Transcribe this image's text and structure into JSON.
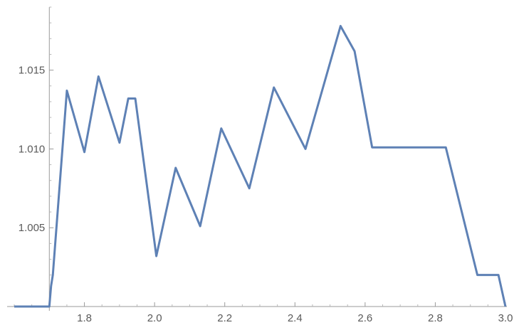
{
  "chart_data": {
    "type": "line",
    "title": "",
    "xlabel": "",
    "ylabel": "",
    "xlim": [
      1.6,
      3.0
    ],
    "ylim": [
      1.0,
      1.019
    ],
    "x_axis_crossing_y": 1.0,
    "y_axis_crossing_x": 1.7,
    "grid": false,
    "legend": "none",
    "line_color": "#5e81b5",
    "x_ticks": [
      {
        "value": 1.8,
        "label": "1.8"
      },
      {
        "value": 2.0,
        "label": "2.0"
      },
      {
        "value": 2.2,
        "label": "2.2"
      },
      {
        "value": 2.4,
        "label": "2.4"
      },
      {
        "value": 2.6,
        "label": "2.6"
      },
      {
        "value": 2.8,
        "label": "2.8"
      },
      {
        "value": 3.0,
        "label": "3.0"
      }
    ],
    "y_ticks": [
      {
        "value": 1.005,
        "label": "1.005"
      },
      {
        "value": 1.01,
        "label": "1.010"
      },
      {
        "value": 1.015,
        "label": "1.015"
      }
    ],
    "series": [
      {
        "x": [
          1.6,
          1.7,
          1.705,
          1.71,
          1.75,
          1.8,
          1.84,
          1.9,
          1.925,
          1.945,
          2.005,
          2.06,
          2.13,
          2.19,
          2.27,
          2.34,
          2.43,
          2.53,
          2.57,
          2.62,
          2.83,
          2.92,
          2.98,
          3.0
        ],
        "y": [
          1.0,
          1.0,
          1.0013,
          1.002,
          1.0137,
          1.0098,
          1.0146,
          1.0104,
          1.0132,
          1.0132,
          1.0032,
          1.0088,
          1.0051,
          1.0113,
          1.0075,
          1.0139,
          1.01,
          1.0178,
          1.0162,
          1.0101,
          1.0101,
          1.002,
          1.002,
          1.0
        ]
      }
    ]
  }
}
